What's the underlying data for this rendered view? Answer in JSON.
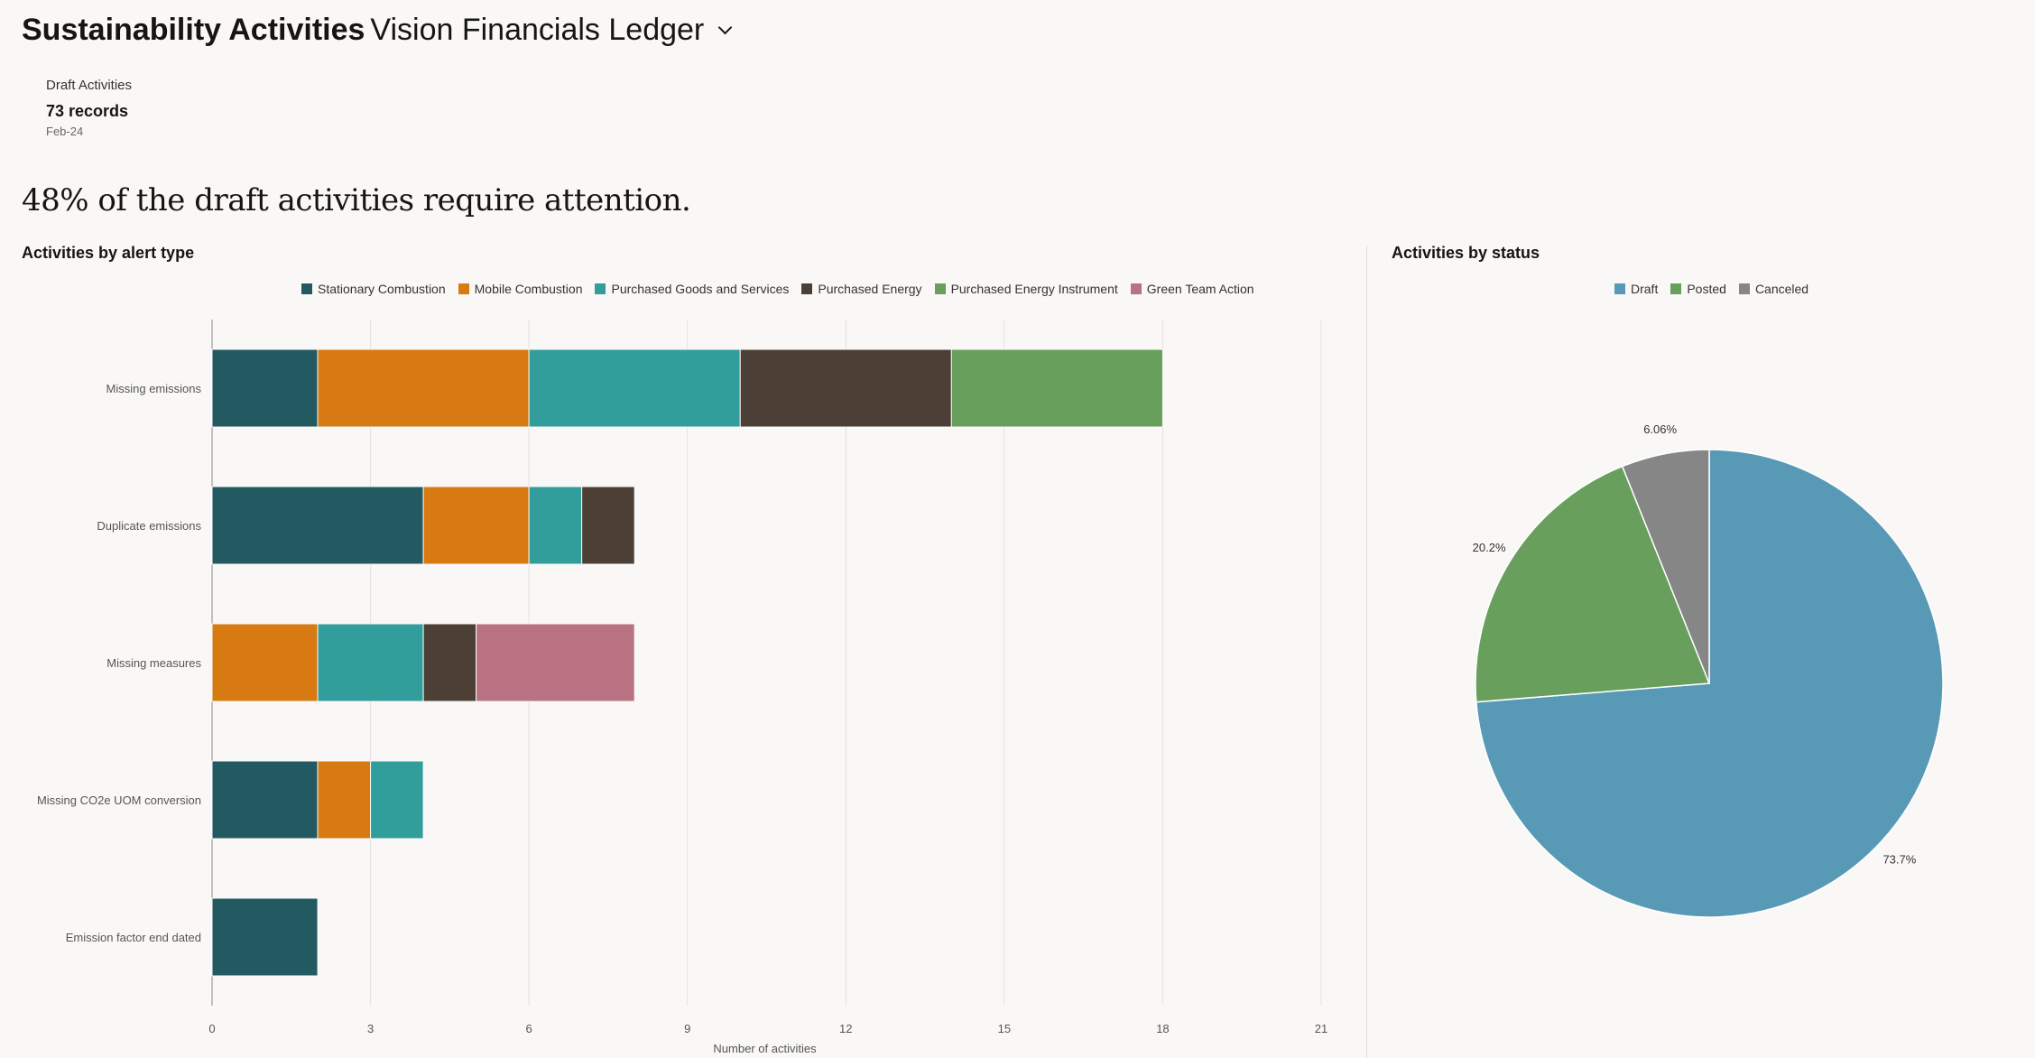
{
  "header": {
    "title": "Sustainability Activities",
    "ledger": "Vision Financials Ledger",
    "dropdown_icon": "chevron-down-icon"
  },
  "summary_card": {
    "label": "Draft Activities",
    "count": "73 records",
    "period": "Feb-24"
  },
  "headline": "48% of the draft activities require attention.",
  "chart_data": [
    {
      "type": "bar",
      "orientation": "horizontal",
      "stacked": true,
      "title": "Activities by alert type",
      "xlabel": "Number of activities",
      "xlim": [
        0,
        21
      ],
      "xticks": [
        0,
        3,
        6,
        9,
        12,
        15,
        18,
        21
      ],
      "grid": true,
      "legend": "top",
      "categories": [
        "Missing emissions",
        "Duplicate emissions",
        "Missing measures",
        "Missing CO2e UOM conversion",
        "Emission factor end dated"
      ],
      "series": [
        {
          "name": "Stationary Combustion",
          "color": "#235a61",
          "values": [
            2,
            4,
            0,
            2,
            2
          ]
        },
        {
          "name": "Mobile Combustion",
          "color": "#d87a12",
          "values": [
            4,
            2,
            2,
            1,
            0
          ]
        },
        {
          "name": "Purchased Goods and Services",
          "color": "#319e9b",
          "values": [
            4,
            1,
            2,
            1,
            0
          ]
        },
        {
          "name": "Purchased Energy",
          "color": "#4c3f36",
          "values": [
            4,
            1,
            1,
            0,
            0
          ]
        },
        {
          "name": "Purchased Energy Instrument",
          "color": "#689f5d",
          "values": [
            4,
            0,
            0,
            0,
            0
          ]
        },
        {
          "name": "Green Team Action",
          "color": "#b87282",
          "values": [
            0,
            0,
            3,
            0,
            0
          ]
        }
      ]
    },
    {
      "type": "pie",
      "title": "Activities by status",
      "legend": "top",
      "slices": [
        {
          "name": "Draft",
          "value": 73.7,
          "label": "73.7%",
          "color": "#5899b5"
        },
        {
          "name": "Posted",
          "value": 20.2,
          "label": "20.2%",
          "color": "#689f5d"
        },
        {
          "name": "Canceled",
          "value": 6.06,
          "label": "6.06%",
          "color": "#868686"
        }
      ]
    }
  ]
}
